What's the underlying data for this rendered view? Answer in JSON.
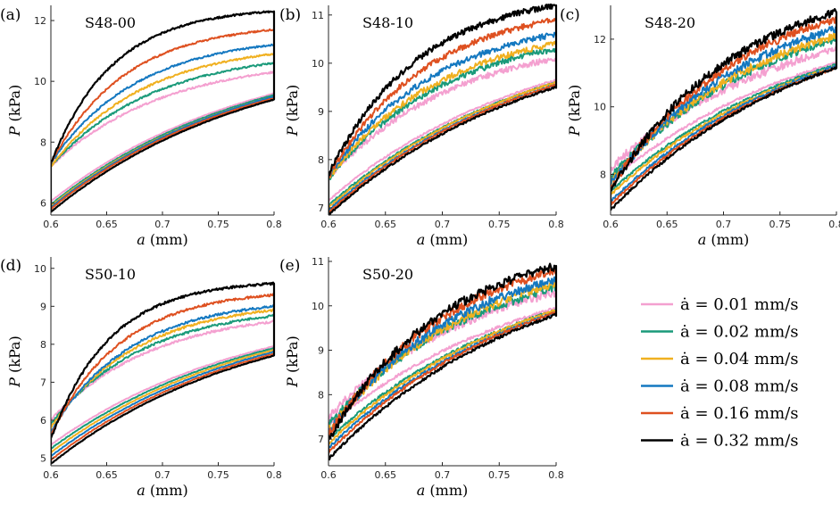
{
  "figure": {
    "legend_title": "",
    "legend_placement": "bottom-right",
    "curve_note": "each rate shows a loading branch (upper) and an unloading branch (lower) joined at a = 0.8 mm"
  },
  "series": [
    {
      "name": "ȧ = 0.01 mm/s",
      "color": "#f4a0d0"
    },
    {
      "name": "ȧ = 0.02 mm/s",
      "color": "#1a9a7a"
    },
    {
      "name": "ȧ = 0.04 mm/s",
      "color": "#f0b020"
    },
    {
      "name": "ȧ = 0.08 mm/s",
      "color": "#1478c0"
    },
    {
      "name": "ȧ = 0.16 mm/s",
      "color": "#de5020"
    },
    {
      "name": "ȧ = 0.32 mm/s",
      "color": "#000000"
    }
  ],
  "chart_data": [
    {
      "type": "line",
      "letter": "(a)",
      "title": "S48-00",
      "xlabel": "a (mm)",
      "ylabel": "P (kPa)",
      "xlim": [
        0.6,
        0.8
      ],
      "ylim": [
        5.6,
        12.5
      ],
      "xticks": [
        "0.6",
        "0.65",
        "0.7",
        "0.75",
        "0.8"
      ],
      "xtick_values": [
        0.6,
        0.65,
        0.7,
        0.75,
        0.8
      ],
      "yticks": [
        "6",
        "8",
        "10",
        "12"
      ],
      "ytick_values": [
        6,
        8,
        10,
        12
      ],
      "noise": 0.03,
      "loading_start": [
        7.2,
        7.2,
        7.2,
        7.3,
        7.3,
        7.3
      ],
      "loading_end": [
        10.3,
        10.6,
        10.9,
        11.2,
        11.7,
        12.3
      ],
      "unloading_start": [
        6.05,
        5.95,
        5.9,
        5.85,
        5.8,
        5.7
      ],
      "unloading_end": [
        9.6,
        9.55,
        9.5,
        9.5,
        9.45,
        9.4
      ],
      "curvature": [
        2.0,
        2.2,
        2.4,
        2.6,
        3.0,
        3.6
      ]
    },
    {
      "type": "line",
      "letter": "(b)",
      "title": "S48-10",
      "xlabel": "a (mm)",
      "ylabel": "P (kPa)",
      "xlim": [
        0.6,
        0.8
      ],
      "ylim": [
        6.85,
        11.2
      ],
      "xticks": [
        "0.6",
        "0.65",
        "0.7",
        "0.75",
        "0.8"
      ],
      "xtick_values": [
        0.6,
        0.65,
        0.7,
        0.75,
        0.8
      ],
      "yticks": [
        "7",
        "8",
        "9",
        "10",
        "11"
      ],
      "ytick_values": [
        7,
        8,
        9,
        10,
        11
      ],
      "noise": 0.06,
      "loading_start": [
        7.6,
        7.6,
        7.6,
        7.65,
        7.65,
        7.7
      ],
      "loading_end": [
        10.1,
        10.3,
        10.4,
        10.6,
        10.9,
        11.2
      ],
      "unloading_start": [
        7.15,
        7.05,
        7.0,
        6.95,
        6.9,
        6.85
      ],
      "unloading_end": [
        9.65,
        9.6,
        9.6,
        9.55,
        9.55,
        9.5
      ],
      "curvature": [
        1.8,
        1.9,
        2.0,
        2.1,
        2.3,
        2.5
      ]
    },
    {
      "type": "line",
      "letter": "(c)",
      "title": "S48-20",
      "xlabel": "a (mm)",
      "ylabel": "P (kPa)",
      "xlim": [
        0.6,
        0.8
      ],
      "ylim": [
        6.8,
        13.0
      ],
      "xticks": [
        "0.6",
        "0.65",
        "0.7",
        "0.75",
        "0.8"
      ],
      "xtick_values": [
        0.6,
        0.65,
        0.7,
        0.75,
        0.8
      ],
      "yticks": [
        "8",
        "10",
        "12"
      ],
      "ytick_values": [
        8,
        10,
        12
      ],
      "noise": 0.12,
      "loading_start": [
        8.2,
        7.9,
        7.8,
        7.7,
        7.6,
        7.5
      ],
      "loading_end": [
        11.7,
        12.0,
        12.1,
        12.3,
        12.6,
        12.8
      ],
      "unloading_start": [
        7.8,
        7.5,
        7.4,
        7.2,
        7.1,
        6.95
      ],
      "unloading_end": [
        11.3,
        11.25,
        11.2,
        11.2,
        11.15,
        11.15
      ],
      "curvature": [
        1.3,
        1.4,
        1.5,
        1.6,
        1.7,
        1.8
      ]
    },
    {
      "type": "line",
      "letter": "(d)",
      "title": "S50-10",
      "xlabel": "a (mm)",
      "ylabel": "P (kPa)",
      "xlim": [
        0.6,
        0.8
      ],
      "ylim": [
        4.8,
        10.3
      ],
      "xticks": [
        "0.6",
        "0.65",
        "0.7",
        "0.75",
        "0.8"
      ],
      "xtick_values": [
        0.6,
        0.65,
        0.7,
        0.75,
        0.8
      ],
      "yticks": [
        "5",
        "6",
        "7",
        "8",
        "9",
        "10"
      ],
      "ytick_values": [
        5,
        6,
        7,
        8,
        9,
        10
      ],
      "noise": 0.03,
      "loading_start": [
        6.0,
        5.9,
        5.8,
        5.7,
        5.6,
        5.5
      ],
      "loading_end": [
        8.6,
        8.75,
        8.9,
        9.0,
        9.3,
        9.6
      ],
      "unloading_start": [
        5.35,
        5.25,
        5.15,
        5.05,
        4.95,
        4.85
      ],
      "unloading_end": [
        7.95,
        7.9,
        7.85,
        7.8,
        7.75,
        7.7
      ],
      "curvature": [
        2.2,
        2.4,
        2.6,
        2.8,
        3.2,
        3.8
      ]
    },
    {
      "type": "line",
      "letter": "(e)",
      "title": "S50-20",
      "xlabel": "a (mm)",
      "ylabel": "P (kPa)",
      "xlim": [
        0.6,
        0.8
      ],
      "ylim": [
        6.4,
        11.1
      ],
      "xticks": [
        "0.6",
        "0.65",
        "0.7",
        "0.75",
        "0.8"
      ],
      "xtick_values": [
        0.6,
        0.65,
        0.7,
        0.75,
        0.8
      ],
      "yticks": [
        "7",
        "8",
        "9",
        "10",
        "11"
      ],
      "ytick_values": [
        7,
        8,
        9,
        10,
        11
      ],
      "noise": 0.1,
      "loading_start": [
        7.5,
        7.3,
        7.2,
        7.15,
        7.1,
        7.0
      ],
      "loading_end": [
        10.3,
        10.4,
        10.5,
        10.6,
        10.8,
        10.9
      ],
      "unloading_start": [
        7.3,
        7.0,
        6.9,
        6.8,
        6.7,
        6.55
      ],
      "unloading_end": [
        9.95,
        9.9,
        9.9,
        9.85,
        9.85,
        9.8
      ],
      "curvature": [
        1.5,
        1.6,
        1.6,
        1.7,
        1.8,
        1.9
      ]
    }
  ]
}
